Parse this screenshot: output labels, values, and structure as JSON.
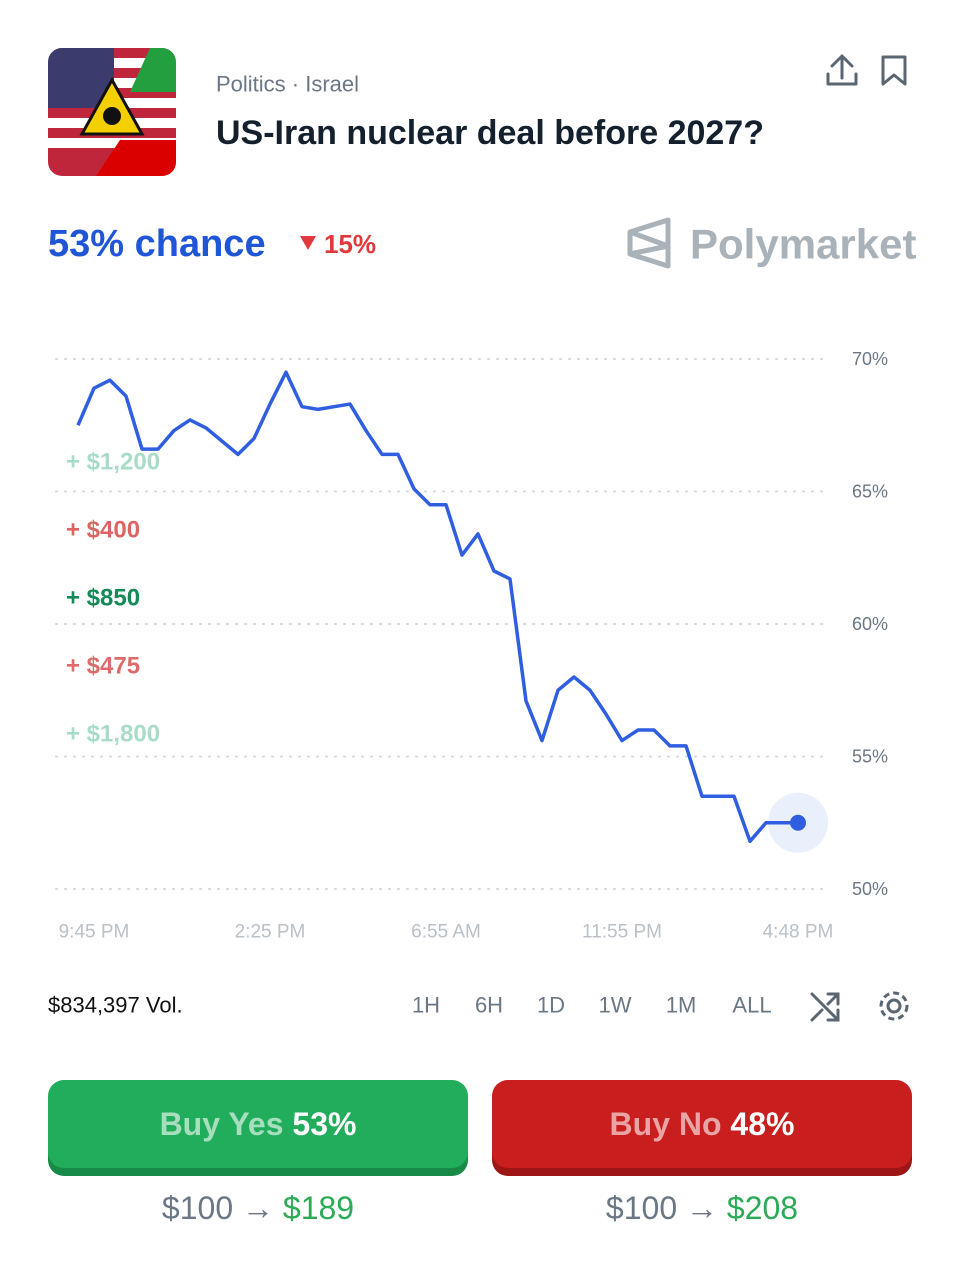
{
  "header": {
    "category": "Politics · Israel",
    "title": "US-Iran nuclear deal before 2027?"
  },
  "summary": {
    "chance": "53% chance",
    "change": "15%",
    "brand": "Polymarket"
  },
  "trades": [
    {
      "label": "+ $1,200",
      "color": "#a9dcc8"
    },
    {
      "label": "+ $400",
      "color": "#de6464"
    },
    {
      "label": "+ $850",
      "color": "#138a57"
    },
    {
      "label": "+ $475",
      "color": "#de6b6b"
    },
    {
      "label": "+ $1,800",
      "color": "#a9dcc8"
    }
  ],
  "chart_data": {
    "type": "line",
    "color": "#2f5fe0",
    "grid": true,
    "x": [
      0,
      1,
      2,
      3,
      4,
      5,
      6,
      7,
      8,
      9,
      10,
      11,
      12,
      13,
      14,
      15,
      16,
      17,
      18,
      19,
      20,
      21,
      22,
      23,
      24,
      25,
      26,
      27,
      28,
      29,
      30,
      31,
      32,
      33,
      34,
      35,
      36,
      37,
      38,
      39,
      40,
      41,
      42,
      43,
      44,
      45
    ],
    "values": [
      67.5,
      68.9,
      69.2,
      68.6,
      66.6,
      66.6,
      67.3,
      67.7,
      67.4,
      66.9,
      66.4,
      67.0,
      68.3,
      69.5,
      68.2,
      68.1,
      68.2,
      68.3,
      67.3,
      66.4,
      66.4,
      65.1,
      64.5,
      64.5,
      62.6,
      63.4,
      62.0,
      61.7,
      57.1,
      55.6,
      57.5,
      58.0,
      57.5,
      56.6,
      55.6,
      56.0,
      56.0,
      55.4,
      55.4,
      53.5,
      53.5,
      53.5,
      51.8,
      52.5,
      52.5,
      52.5
    ],
    "xlim": [
      0,
      45
    ],
    "ylim": [
      50,
      70
    ],
    "xticks": [
      {
        "value": 1,
        "label": "9:45 PM"
      },
      {
        "value": 12,
        "label": "2:25 PM"
      },
      {
        "value": 23,
        "label": "6:55 AM"
      },
      {
        "value": 34,
        "label": "11:55 PM"
      },
      {
        "value": 45,
        "label": "4:48 PM"
      }
    ],
    "yticks": [
      {
        "value": 50,
        "label": "50%"
      },
      {
        "value": 55,
        "label": "55%"
      },
      {
        "value": 60,
        "label": "60%"
      },
      {
        "value": 65,
        "label": "65%"
      },
      {
        "value": 70,
        "label": "70%"
      }
    ]
  },
  "footer": {
    "volume": "$834,397 Vol.",
    "ranges": [
      "1H",
      "6H",
      "1D",
      "1W",
      "1M",
      "ALL"
    ]
  },
  "buttons": [
    {
      "action": "Buy Yes",
      "price": "53%",
      "stake": "$100 →",
      "payout": "$189"
    },
    {
      "action": "Buy No",
      "price": "48%",
      "stake": "$100 →",
      "payout": "$208"
    }
  ]
}
